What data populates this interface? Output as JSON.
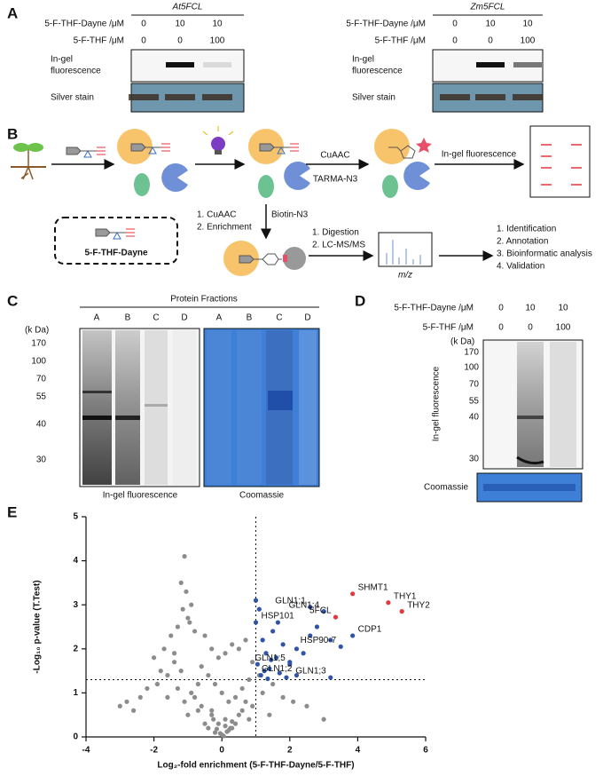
{
  "panel_a": {
    "label": "A",
    "blocks": [
      {
        "title": "At5FCL",
        "rows": [
          {
            "name": "5-F-THF-Dayne /μM",
            "values": [
              0,
              10,
              10
            ]
          },
          {
            "name": "5-F-THF /μM",
            "values": [
              0,
              0,
              100
            ]
          }
        ],
        "fluorescence_label": [
          "In-gel",
          "fluorescence"
        ],
        "stain_label": "Silver stain"
      },
      {
        "title": "Zm5FCL",
        "rows": [
          {
            "name": "5-F-THF-Dayne /μM",
            "values": [
              0,
              10,
              10
            ]
          },
          {
            "name": "5-F-THF /μM",
            "values": [
              0,
              0,
              100
            ]
          }
        ],
        "fluorescence_label": [
          "In-gel",
          "fluorescence"
        ],
        "stain_label": "Silver stain"
      }
    ]
  },
  "panel_b": {
    "label": "B",
    "probe_name": "5-F-THF-Dayne",
    "cuaac": "CuAAC",
    "tarma": "TARMA-N3",
    "ingel": "In-gel fluorescence",
    "enrich": [
      "1. CuAAC",
      "2. Enrichment"
    ],
    "biotin": "Biotin-N3",
    "ms": [
      "1. Digestion",
      "2. LC-MS/MS"
    ],
    "mz": "m/z",
    "analysis": [
      "1. Identification",
      "2. Annotation",
      "3. Bioinformatic analysis",
      "4. Validation"
    ]
  },
  "panel_c": {
    "label": "C",
    "title": "Protein Fractions",
    "lanes": [
      "A",
      "B",
      "C",
      "D"
    ],
    "unit": "(k Da)",
    "markers": [
      170,
      100,
      70,
      55,
      40,
      30
    ],
    "captions": [
      "In-gel  fluorescence",
      "Coomassie"
    ]
  },
  "panel_d": {
    "label": "D",
    "rows": [
      {
        "name": "5-F-THF-Dayne /μM",
        "values": [
          0,
          10,
          10
        ]
      },
      {
        "name": "5-F-THF /μM",
        "values": [
          0,
          0,
          100
        ]
      }
    ],
    "unit": "(k Da)",
    "markers": [
      170,
      100,
      70,
      55,
      40,
      30
    ],
    "y_label": "In-gel  fluorescence",
    "stain_label": "Coomassie"
  },
  "panel_e_label": "E",
  "chart_data": {
    "type": "scatter",
    "x_label": "Log₂-fold enrichment (5-F-THF-Dayne/5-F-THF)",
    "y_label": "-Log₁₀ p-value (T.Test)",
    "xlim": [
      -4,
      6
    ],
    "ylim": [
      0,
      5
    ],
    "xticks": [
      -4,
      -2,
      0,
      2,
      4,
      6
    ],
    "yticks": [
      0,
      1,
      2,
      3,
      4,
      5
    ],
    "reference_lines": {
      "x": 1,
      "y": 1.3
    },
    "series": [
      {
        "color": "#8c8c8c",
        "x": [
          -1.1,
          -1.2,
          -0.9,
          -1.0,
          -1.3,
          -0.8,
          -0.5,
          -0.3,
          -0.1,
          0.1,
          0.3,
          0.5,
          0.7,
          0.9,
          -1.5,
          -1.7,
          -2.0,
          -1.8,
          -0.6,
          -0.4,
          -0.2,
          0.0,
          0.2,
          0.4,
          0.6,
          0.8,
          -1.4,
          -1.6,
          -1.9,
          -2.2,
          -2.4,
          -2.6,
          -0.7,
          -0.9,
          -1.1,
          -0.3,
          0.1,
          0.5,
          0.9,
          1.2,
          1.5,
          1.8,
          2.1,
          2.5,
          3.0,
          0.3,
          -0.5,
          -1.0,
          -0.2,
          0.0,
          0.2,
          0.4,
          -0.6,
          -0.8,
          -1.2,
          -1.4,
          -0.4,
          0.6,
          0.8,
          -0.1,
          0.1,
          -0.3,
          0.3,
          -0.7,
          0.7,
          -1.3,
          1.1,
          1.4,
          -1.6,
          -2.8,
          -3.0,
          -1.05,
          -1.15,
          -0.95,
          0.05,
          -0.05,
          0.15,
          -0.15,
          0.25,
          -0.25
        ],
        "values": [
          4.1,
          3.5,
          3.0,
          2.7,
          2.5,
          2.4,
          2.3,
          2.0,
          1.8,
          1.9,
          2.1,
          2.0,
          2.2,
          1.7,
          2.3,
          2.0,
          1.8,
          1.5,
          1.6,
          1.4,
          1.2,
          1.0,
          0.8,
          0.9,
          1.1,
          1.3,
          1.9,
          1.4,
          1.2,
          1.1,
          0.9,
          0.6,
          1.2,
          1.0,
          0.8,
          0.6,
          0.4,
          0.5,
          0.7,
          1.0,
          1.2,
          0.9,
          0.8,
          0.7,
          0.4,
          0.2,
          0.3,
          0.5,
          0.1,
          0.05,
          0.15,
          0.3,
          0.7,
          0.9,
          1.5,
          1.7,
          0.2,
          0.6,
          0.4,
          0.3,
          0.25,
          0.5,
          0.35,
          0.6,
          0.8,
          1.1,
          1.4,
          0.5,
          0.9,
          0.8,
          0.7,
          3.3,
          2.9,
          2.6,
          0.02,
          0.08,
          0.12,
          0.18,
          0.2,
          0.4
        ]
      },
      {
        "color": "#2f54a8",
        "x": [
          1.0,
          1.1,
          1.2,
          1.3,
          1.5,
          1.6,
          1.8,
          2.0,
          1.4,
          1.7,
          1.9,
          2.2,
          2.6,
          2.8,
          1.05,
          1.25,
          1.45,
          1.65,
          2.4,
          3.2,
          1.15,
          1.35
        ],
        "values": [
          3.1,
          2.9,
          2.2,
          1.9,
          2.4,
          1.8,
          2.1,
          1.7,
          1.55,
          1.45,
          1.35,
          2.0,
          2.3,
          2.5,
          1.65,
          1.5,
          1.75,
          2.6,
          1.9,
          2.2,
          1.4,
          1.32
        ]
      },
      {
        "color": "#2f54a8",
        "labels": [
          "GLN1;1",
          "GLN1;4",
          "HSP101",
          "CDP1",
          "HSP90-7",
          "GLN1;5",
          "GLN1;2",
          "GLN1;3"
        ],
        "x": [
          2.6,
          3.0,
          1.0,
          3.85,
          3.5,
          2.0,
          2.2,
          3.2
        ],
        "values": [
          2.95,
          2.85,
          2.6,
          2.3,
          2.05,
          1.65,
          1.4,
          1.35
        ]
      },
      {
        "color": "#e0393e",
        "labels": [
          "SHMT1",
          "THY1",
          "THY2",
          "5FCL"
        ],
        "x": [
          3.85,
          4.9,
          5.3,
          3.35
        ],
        "values": [
          3.25,
          3.05,
          2.85,
          2.72
        ]
      }
    ]
  }
}
